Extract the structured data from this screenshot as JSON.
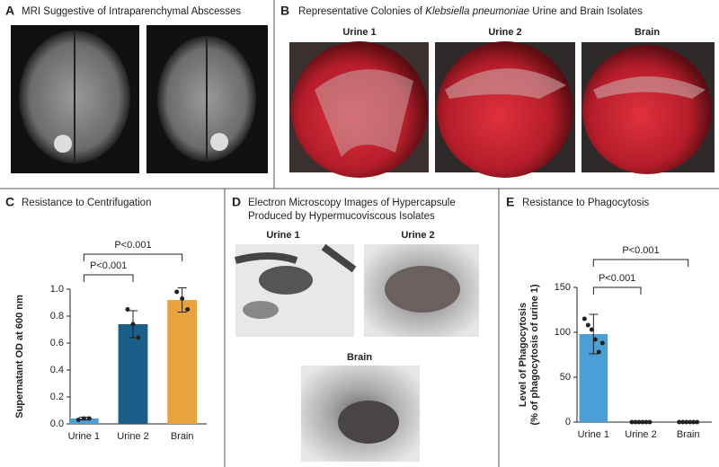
{
  "panels": {
    "a": {
      "letter": "A",
      "title": "MRI Suggestive of Intraparenchymal Abscesses"
    },
    "b": {
      "letter": "B",
      "title": [
        "Representative Colonies of ",
        "Klebsiella pneumoniae",
        " Urine and Brain Isolates"
      ],
      "labels": [
        "Urine 1",
        "Urine 2",
        "Brain"
      ]
    },
    "d": {
      "letter": "D",
      "title": [
        "Electron Microscopy Images of Hypercapsule",
        "Produced by Hypermucoviscous Isolates"
      ],
      "labels": [
        "Urine 1",
        "Urine 2",
        "Brain"
      ]
    }
  },
  "chart_data": [
    {
      "type": "bar",
      "letter": "C",
      "title": "Resistance to Centrifugation",
      "ylabel": [
        "Supernatant OD at 600 nm"
      ],
      "categories": [
        "Urine 1",
        "Urine 2",
        "Brain"
      ],
      "values": [
        0.04,
        0.74,
        0.92
      ],
      "errors": [
        0.01,
        0.1,
        0.09
      ],
      "points": [
        [
          0.03,
          0.04,
          0.04
        ],
        [
          0.85,
          0.74,
          0.64
        ],
        [
          0.98,
          0.93,
          0.85
        ]
      ],
      "colors": [
        "#4a9fd4",
        "#1b5e8a",
        "#e8a33a"
      ],
      "ylim": [
        0,
        1
      ],
      "yticks": [
        {
          "value": 0,
          "label": "0.0"
        },
        0.2,
        0.4,
        0.6,
        0.8,
        {
          "value": 1,
          "label": "1.0"
        }
      ],
      "annotations": [
        "P<0.001",
        "P<0.001"
      ]
    },
    {
      "type": "bar",
      "letter": "E",
      "title": "Resistance to Phagocytosis",
      "ylabel": [
        "Level of Phagocytosis",
        "(% of phagocytosis of urine 1)"
      ],
      "categories": [
        "Urine 1",
        "Urine 2",
        "Brain"
      ],
      "values": [
        98,
        0,
        0
      ],
      "errors": [
        22,
        0,
        0
      ],
      "points": [
        [
          115,
          108,
          103,
          92,
          78,
          88
        ],
        [
          0,
          0,
          0,
          0,
          0,
          0
        ],
        [
          0,
          0,
          0,
          0,
          0,
          0
        ]
      ],
      "colors": [
        "#4a9fd4",
        "#4a9fd4",
        "#4a9fd4"
      ],
      "ylim": [
        0,
        150
      ],
      "yticks": [
        0,
        50,
        100,
        150
      ],
      "annotations": [
        "P<0.001",
        "P<0.001"
      ]
    }
  ]
}
